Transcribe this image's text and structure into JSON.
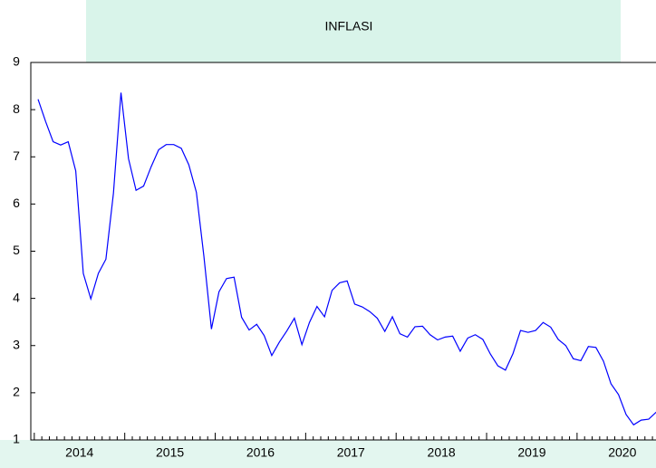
{
  "chart_data": {
    "type": "line",
    "title": "INFLASI",
    "year_labels": [
      "2014",
      "2015",
      "2016",
      "2017",
      "2018",
      "2019",
      "2020"
    ],
    "series": [
      {
        "name": null,
        "color": "#0000ff",
        "values": [
          8.22,
          7.75,
          7.32,
          7.25,
          7.32,
          6.7,
          4.53,
          3.99,
          4.53,
          4.83,
          6.23,
          8.36,
          6.96,
          6.29,
          6.38,
          6.79,
          7.15,
          7.26,
          7.26,
          7.18,
          6.83,
          6.25,
          4.89,
          3.35,
          4.14,
          4.42,
          4.45,
          3.6,
          3.33,
          3.45,
          3.21,
          2.79,
          3.07,
          3.31,
          3.58,
          3.02,
          3.49,
          3.83,
          3.61,
          4.17,
          4.33,
          4.37,
          3.88,
          3.82,
          3.72,
          3.58,
          3.3,
          3.61,
          3.25,
          3.18,
          3.4,
          3.41,
          3.23,
          3.12,
          3.18,
          3.2,
          2.88,
          3.16,
          3.23,
          3.13,
          2.82,
          2.57,
          2.48,
          2.83,
          3.32,
          3.28,
          3.32,
          3.49,
          3.39,
          3.13,
          3.0,
          2.72,
          2.68,
          2.98,
          2.96,
          2.67,
          2.19,
          1.96,
          1.54,
          1.32,
          1.42,
          1.44,
          1.59
        ]
      }
    ],
    "ylim": [
      1,
      9
    ],
    "yticks": [
      1,
      2,
      3,
      4,
      5,
      6,
      7,
      8,
      9
    ],
    "grid": false
  }
}
